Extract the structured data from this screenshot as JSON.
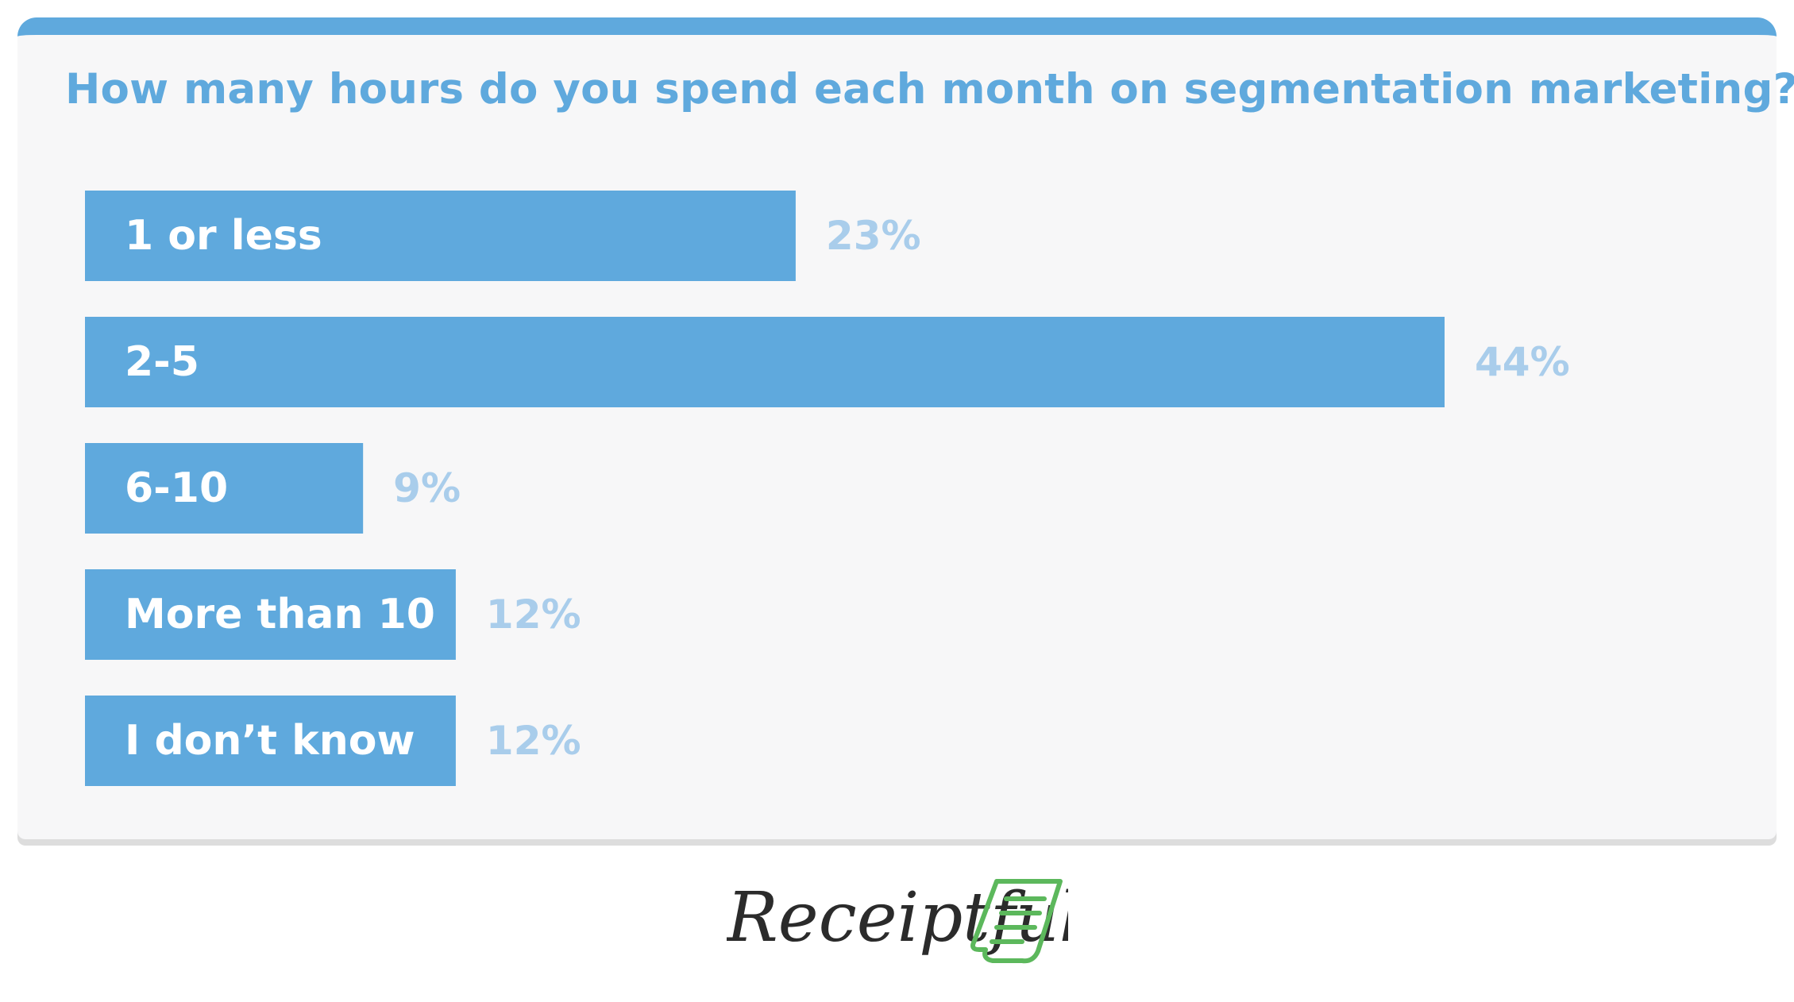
{
  "colors": {
    "accent": "#5fa9dd",
    "card_background": "#f7f7f8",
    "bar_text": "#ffffff",
    "value_text": "#a9cdeb",
    "logo_text": "#2b2b2b",
    "logo_icon": "#5cb85c"
  },
  "chart_data": {
    "type": "bar",
    "orientation": "horizontal",
    "title": "How many hours do you spend each month on segmentation marketing?",
    "categories": [
      "1 or less",
      "2-5",
      "6-10",
      "More than 10",
      "I don’t know"
    ],
    "values": [
      23,
      44,
      9,
      12,
      12
    ],
    "value_labels": [
      "23%",
      "44%",
      "9%",
      "12%",
      "12%"
    ],
    "unit": "%",
    "xlim": [
      0,
      44
    ],
    "grid": false,
    "legend": "none"
  },
  "brand": {
    "name": "Receiptful",
    "icon": "receipt-icon"
  }
}
